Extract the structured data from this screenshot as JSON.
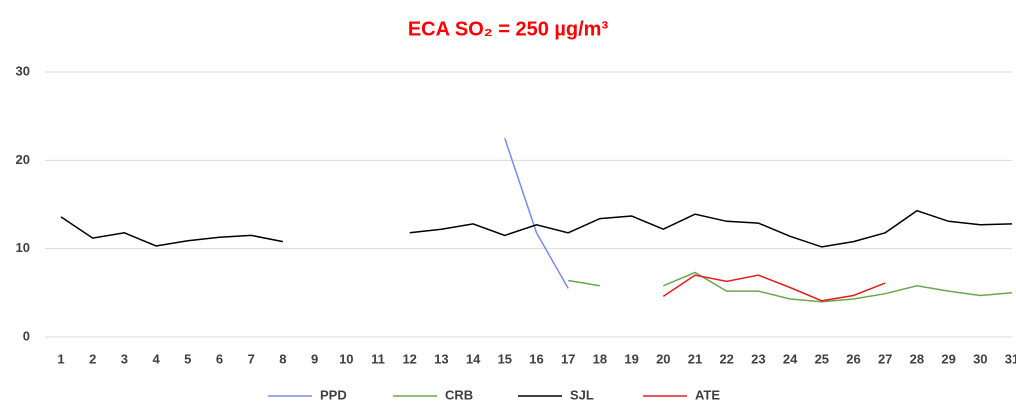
{
  "chart_data": {
    "type": "line",
    "title": "ECA SO₂ = 250 µg/m³",
    "categories": [
      1,
      2,
      3,
      4,
      5,
      6,
      7,
      8,
      9,
      10,
      11,
      12,
      13,
      14,
      15,
      16,
      17,
      18,
      19,
      20,
      21,
      22,
      23,
      24,
      25,
      26,
      27,
      28,
      29,
      30,
      31
    ],
    "series": [
      {
        "name": "PPD",
        "color": "#7b8cf0",
        "values": [
          null,
          null,
          null,
          null,
          null,
          null,
          null,
          null,
          null,
          null,
          null,
          null,
          null,
          null,
          22.5,
          11.8,
          5.5,
          null,
          null,
          null,
          null,
          null,
          null,
          null,
          null,
          null,
          null,
          null,
          null,
          null,
          null
        ]
      },
      {
        "name": "CRB",
        "color": "#6aa84f",
        "values": [
          null,
          null,
          null,
          null,
          null,
          null,
          null,
          null,
          null,
          null,
          null,
          null,
          null,
          null,
          null,
          null,
          6.4,
          5.8,
          null,
          5.8,
          7.3,
          5.2,
          5.2,
          4.3,
          4.0,
          4.3,
          4.9,
          5.8,
          5.2,
          4.7,
          5.0
        ]
      },
      {
        "name": "SJL",
        "color": "#000000",
        "values": [
          13.6,
          11.2,
          11.8,
          10.3,
          10.9,
          11.3,
          11.5,
          10.8,
          null,
          null,
          null,
          11.8,
          12.2,
          12.8,
          11.5,
          12.7,
          11.8,
          13.4,
          13.7,
          12.2,
          13.9,
          13.1,
          12.9,
          11.4,
          10.2,
          10.8,
          11.8,
          14.3,
          13.1,
          12.7,
          12.8
        ]
      },
      {
        "name": "ATE",
        "color": "#e02020",
        "values": [
          null,
          null,
          null,
          null,
          null,
          null,
          null,
          null,
          null,
          null,
          null,
          null,
          null,
          null,
          null,
          null,
          null,
          null,
          null,
          4.6,
          7.0,
          6.3,
          7.0,
          5.6,
          4.1,
          4.7,
          6.1,
          null,
          null,
          null,
          null
        ]
      }
    ],
    "ylim": [
      0,
      30
    ],
    "yticks": [
      0,
      10,
      20,
      30
    ],
    "grid": true,
    "legend": "bottom",
    "title_color": "#ff0000"
  }
}
